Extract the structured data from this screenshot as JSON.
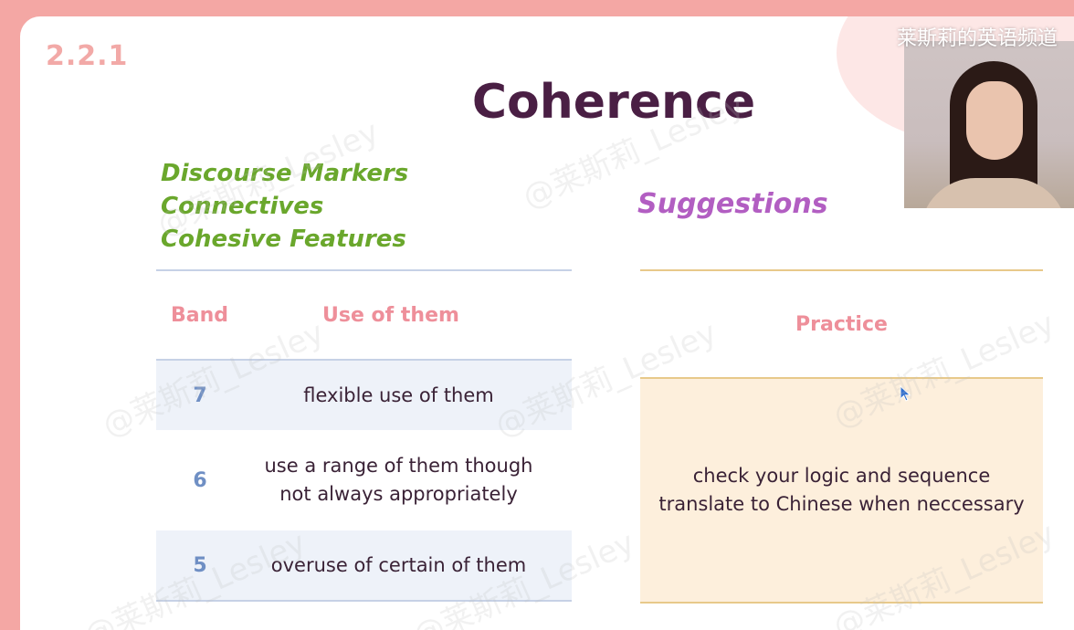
{
  "slide": {
    "section_number": "2.2.1",
    "title": "Coherence",
    "markers": [
      "Discourse Markers",
      "Connectives",
      "Cohesive Features"
    ],
    "suggestions_heading": "Suggestions"
  },
  "band_table": {
    "header_band": "Band",
    "header_use": "Use of them",
    "rows": [
      {
        "band": "7",
        "use_line1": "flexible use of them",
        "use_line2": ""
      },
      {
        "band": "6",
        "use_line1": "use a range of them though",
        "use_line2": "not always appropriately"
      },
      {
        "band": "5",
        "use_line1": "overuse of certain of them",
        "use_line2": ""
      }
    ]
  },
  "practice_table": {
    "header": "Practice",
    "lines": [
      "check your logic and sequence",
      "translate to Chinese when neccessary"
    ]
  },
  "overlay": {
    "channel_name": "莱斯莉的英语频道",
    "watermark_text": "@莱斯莉_Lesley"
  },
  "colors": {
    "frame": "#f4a7a4",
    "title": "#4a1f44",
    "markers": "#6aa72c",
    "suggestions": "#b25ec2",
    "headers": "#ee8f9a",
    "band_numbers": "#6f8fc4",
    "practice_fill": "#fdefdc"
  },
  "icons": {
    "cursor": "mouse-pointer-icon"
  }
}
